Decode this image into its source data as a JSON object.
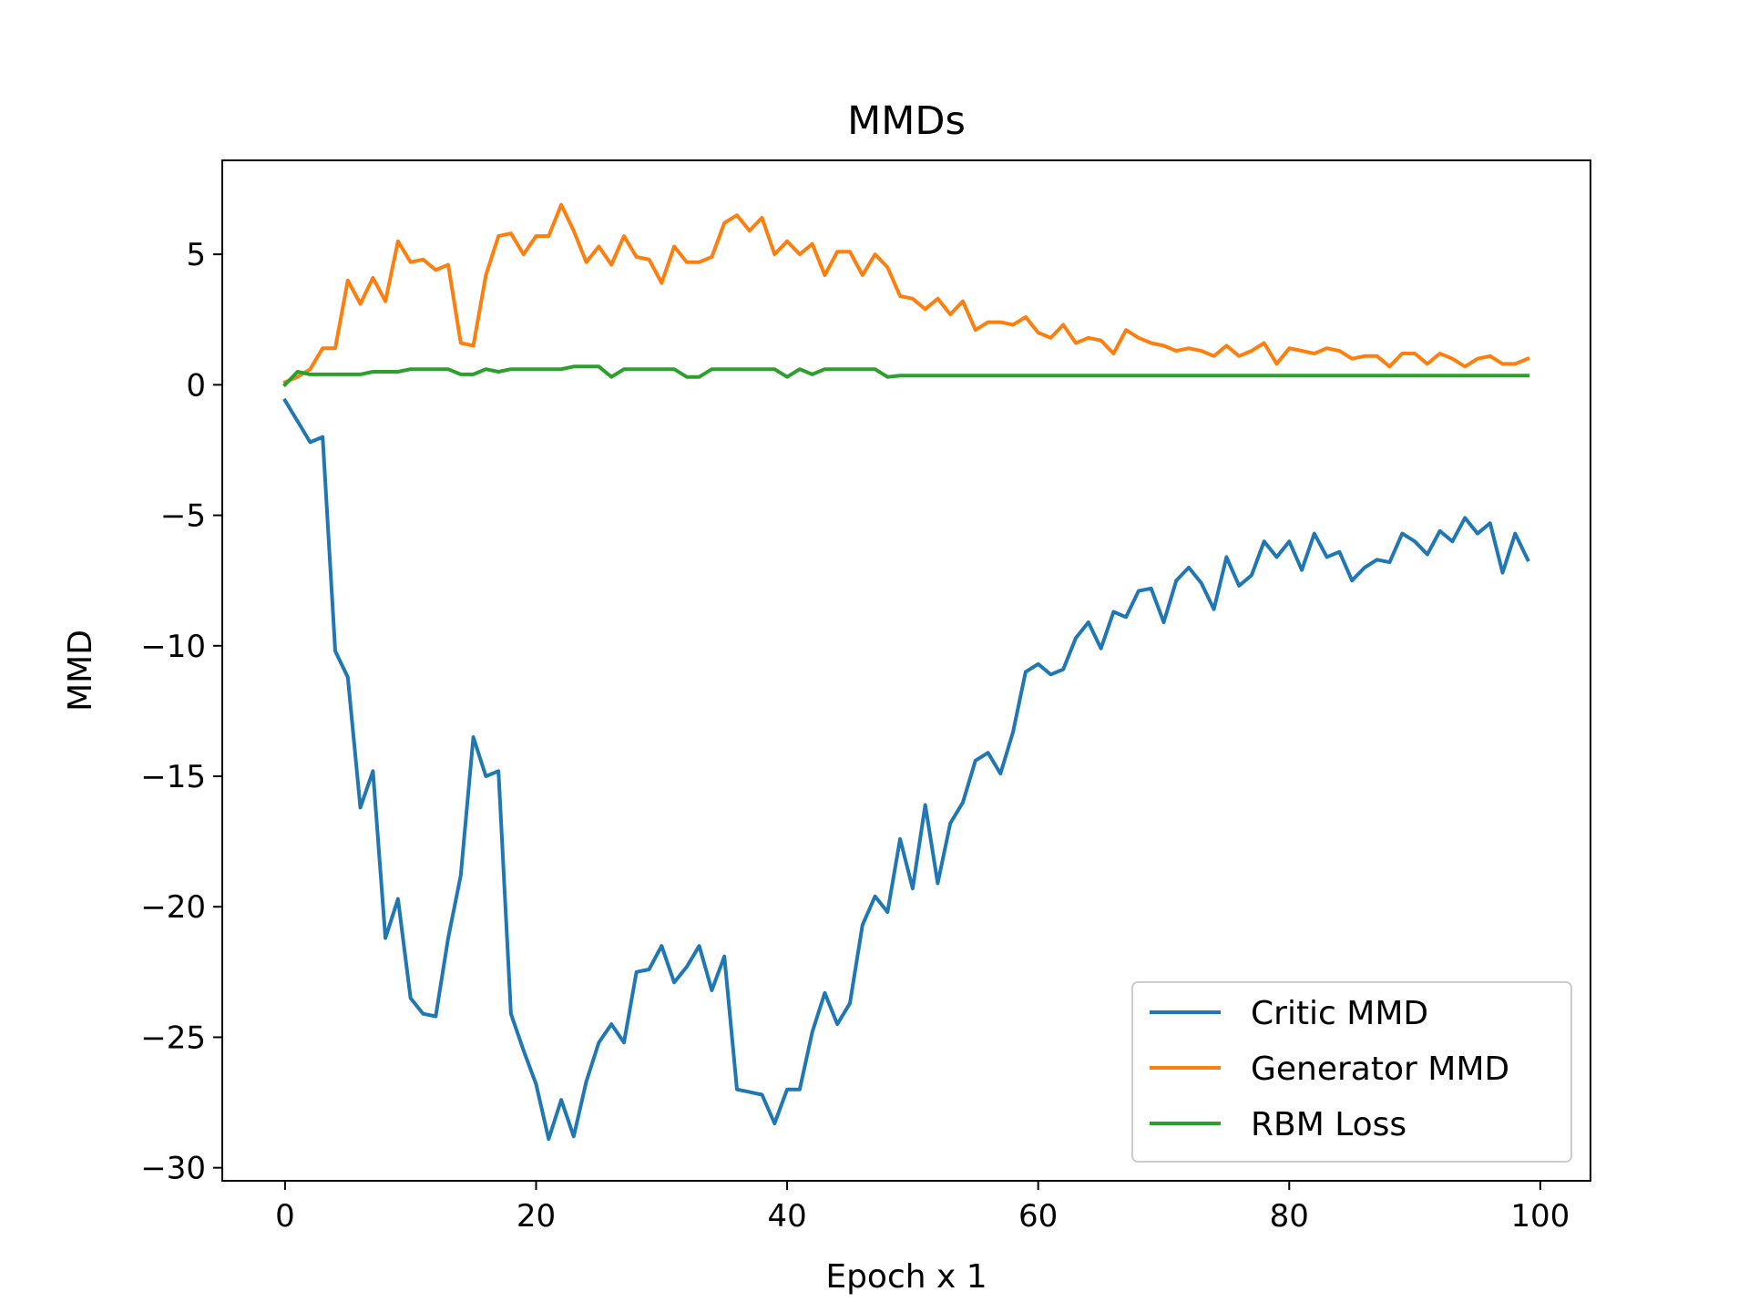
{
  "chart_data": {
    "type": "line",
    "title": "MMDs",
    "xlabel": "Epoch x 1",
    "ylabel": "MMD",
    "xlim": [
      -5,
      104
    ],
    "ylim": [
      -30.5,
      8.6
    ],
    "xticks": [
      0,
      20,
      40,
      60,
      80,
      100
    ],
    "yticks": [
      5,
      0,
      -5,
      -10,
      -15,
      -20,
      -25,
      -30
    ],
    "ytick_labels": [
      "5",
      "0",
      "−5",
      "−10",
      "−15",
      "−20",
      "−25",
      "−30"
    ],
    "grid": false,
    "legend_position": "lower-right",
    "series": [
      {
        "name": "Critic MMD",
        "color": "#1f77b4",
        "values": [
          -0.6,
          -1.4,
          -2.2,
          -2.0,
          -10.2,
          -11.2,
          -16.2,
          -14.8,
          -21.2,
          -19.7,
          -23.5,
          -24.1,
          -24.2,
          -21.2,
          -18.8,
          -13.5,
          -15.0,
          -14.8,
          -24.1,
          -25.5,
          -26.8,
          -28.9,
          -27.4,
          -28.8,
          -26.7,
          -25.2,
          -24.5,
          -25.2,
          -22.5,
          -22.4,
          -21.5,
          -22.9,
          -22.3,
          -21.5,
          -23.2,
          -21.9,
          -27.0,
          -27.1,
          -27.2,
          -28.3,
          -27.0,
          -27.0,
          -24.8,
          -23.3,
          -24.5,
          -23.7,
          -20.7,
          -19.6,
          -20.2,
          -17.4,
          -19.3,
          -16.1,
          -19.1,
          -16.8,
          -16.0,
          -14.4,
          -14.1,
          -14.9,
          -13.3,
          -11.0,
          -10.7,
          -11.1,
          -10.9,
          -9.7,
          -9.1,
          -10.1,
          -8.7,
          -8.9,
          -7.9,
          -7.8,
          -9.1,
          -7.5,
          -7.0,
          -7.6,
          -8.6,
          -6.6,
          -7.7,
          -7.3,
          -6.0,
          -6.6,
          -6.0,
          -7.1,
          -5.7,
          -6.6,
          -6.4,
          -7.5,
          -7.0,
          -6.7,
          -6.8,
          -5.7,
          -6.0,
          -6.5,
          -5.6,
          -6.0,
          -5.1,
          -5.7,
          -5.3,
          -7.2,
          -5.7,
          -6.7
        ]
      },
      {
        "name": "Generator MMD",
        "color": "#ff7f0e",
        "values": [
          0.1,
          0.3,
          0.6,
          1.4,
          1.4,
          4.0,
          3.1,
          4.1,
          3.2,
          5.5,
          4.7,
          4.8,
          4.4,
          4.6,
          1.6,
          1.5,
          4.2,
          5.7,
          5.8,
          5.0,
          5.7,
          5.7,
          6.9,
          5.9,
          4.7,
          5.3,
          4.6,
          5.7,
          4.9,
          4.8,
          3.9,
          5.3,
          4.7,
          4.7,
          4.9,
          6.2,
          6.5,
          5.9,
          6.4,
          5.0,
          5.5,
          5.0,
          5.4,
          4.2,
          5.1,
          5.1,
          4.2,
          5.0,
          4.5,
          3.4,
          3.3,
          2.9,
          3.3,
          2.7,
          3.2,
          2.1,
          2.4,
          2.4,
          2.3,
          2.6,
          2.0,
          1.8,
          2.3,
          1.6,
          1.8,
          1.7,
          1.2,
          2.1,
          1.8,
          1.6,
          1.5,
          1.3,
          1.4,
          1.3,
          1.1,
          1.5,
          1.1,
          1.3,
          1.6,
          0.8,
          1.4,
          1.3,
          1.2,
          1.4,
          1.3,
          1.0,
          1.1,
          1.1,
          0.7,
          1.2,
          1.2,
          0.8,
          1.2,
          1.0,
          0.7,
          1.0,
          1.1,
          0.8,
          0.8,
          1.0
        ]
      },
      {
        "name": "RBM Loss",
        "color": "#2ca02c",
        "values": [
          0.0,
          0.5,
          0.4,
          0.4,
          0.4,
          0.4,
          0.4,
          0.5,
          0.5,
          0.5,
          0.6,
          0.6,
          0.6,
          0.6,
          0.4,
          0.4,
          0.6,
          0.5,
          0.6,
          0.6,
          0.6,
          0.6,
          0.6,
          0.7,
          0.7,
          0.7,
          0.3,
          0.6,
          0.6,
          0.6,
          0.6,
          0.6,
          0.3,
          0.3,
          0.6,
          0.6,
          0.6,
          0.6,
          0.6,
          0.6,
          0.3,
          0.6,
          0.4,
          0.6,
          0.6,
          0.6,
          0.6,
          0.6,
          0.3,
          0.35,
          0.35,
          0.35,
          0.35,
          0.35,
          0.35,
          0.35,
          0.35,
          0.35,
          0.35,
          0.35,
          0.35,
          0.35,
          0.35,
          0.35,
          0.35,
          0.35,
          0.35,
          0.35,
          0.35,
          0.35,
          0.35,
          0.35,
          0.35,
          0.35,
          0.35,
          0.35,
          0.35,
          0.35,
          0.35,
          0.35,
          0.35,
          0.35,
          0.35,
          0.35,
          0.35,
          0.35,
          0.35,
          0.35,
          0.35,
          0.35,
          0.35,
          0.35,
          0.35,
          0.35,
          0.35,
          0.35,
          0.35,
          0.35,
          0.35,
          0.35
        ]
      }
    ]
  }
}
